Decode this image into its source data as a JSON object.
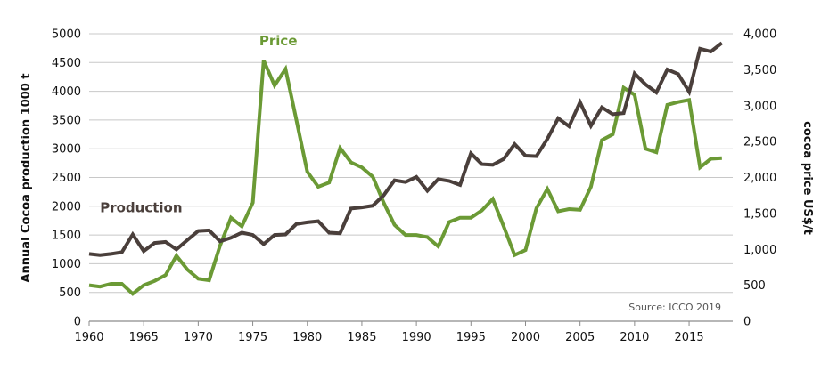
{
  "chart_data": {
    "type": "line",
    "x_ticks": [
      "1960",
      "1965",
      "1970",
      "1975",
      "1980",
      "1985",
      "1990",
      "1995",
      "2000",
      "2005",
      "2010",
      "2015"
    ],
    "xlim": [
      1960,
      2019
    ],
    "ylabel_left": "Annual Cocoa production 1000 t",
    "ylabel_right": "cocoa price US$/t",
    "ylim_left": [
      0,
      5000
    ],
    "ylim_right": [
      0,
      4000
    ],
    "left_ticks": [
      "0",
      "500",
      "1000",
      "1500",
      "2000",
      "2500",
      "3000",
      "3500",
      "4000",
      "4500",
      "5000"
    ],
    "right_ticks": [
      "0",
      "500",
      "1,000",
      "1,500",
      "2,000",
      "2,500",
      "3,000",
      "3,500",
      "4,000"
    ],
    "grid": "horizontal",
    "source": "Source: ICCO 2019",
    "colors": {
      "production": "#4a3f3b",
      "price": "#6b9a35",
      "grid": "#c8c8c8"
    },
    "series": [
      {
        "name": "Production",
        "axis": "left",
        "x": [
          1960,
          1961,
          1962,
          1963,
          1964,
          1965,
          1966,
          1967,
          1968,
          1969,
          1970,
          1971,
          1972,
          1973,
          1974,
          1975,
          1976,
          1977,
          1978,
          1979,
          1980,
          1981,
          1982,
          1983,
          1984,
          1985,
          1986,
          1987,
          1988,
          1989,
          1990,
          1991,
          1992,
          1993,
          1994,
          1995,
          1996,
          1997,
          1998,
          1999,
          2000,
          2001,
          2002,
          2003,
          2004,
          2005,
          2006,
          2007,
          2008,
          2009,
          2010,
          2011,
          2012,
          2013,
          2014,
          2015,
          2016,
          2017,
          2018
        ],
        "values": [
          1170,
          1150,
          1170,
          1200,
          1510,
          1220,
          1360,
          1380,
          1250,
          1410,
          1570,
          1580,
          1390,
          1450,
          1540,
          1500,
          1340,
          1500,
          1510,
          1690,
          1720,
          1740,
          1540,
          1530,
          1960,
          1980,
          2010,
          2190,
          2450,
          2420,
          2510,
          2270,
          2470,
          2440,
          2370,
          2920,
          2730,
          2720,
          2820,
          3080,
          2880,
          2870,
          3170,
          3530,
          3390,
          3810,
          3400,
          3720,
          3600,
          3620,
          4310,
          4120,
          3980,
          4380,
          4300,
          3990,
          4740,
          4690,
          4840
        ]
      },
      {
        "name": "Price",
        "axis": "right",
        "x": [
          1960,
          1961,
          1962,
          1963,
          1964,
          1965,
          1966,
          1967,
          1968,
          1969,
          1970,
          1971,
          1972,
          1973,
          1974,
          1975,
          1976,
          1977,
          1978,
          1979,
          1980,
          1981,
          1982,
          1983,
          1984,
          1985,
          1986,
          1987,
          1988,
          1989,
          1990,
          1991,
          1992,
          1993,
          1994,
          1995,
          1996,
          1997,
          1998,
          1999,
          2000,
          2001,
          2002,
          2003,
          2004,
          2005,
          2006,
          2007,
          2008,
          2009,
          2010,
          2011,
          2012,
          2013,
          2014,
          2015,
          2016,
          2017,
          2018
        ],
        "values": [
          500,
          480,
          520,
          520,
          380,
          500,
          560,
          640,
          910,
          720,
          590,
          570,
          1050,
          1440,
          1320,
          1650,
          3630,
          3280,
          3510,
          2800,
          2080,
          1870,
          1930,
          2410,
          2210,
          2140,
          2010,
          1650,
          1340,
          1200,
          1200,
          1170,
          1040,
          1380,
          1440,
          1440,
          1540,
          1700,
          1320,
          920,
          990,
          1570,
          1840,
          1530,
          1560,
          1550,
          1870,
          2520,
          2600,
          3250,
          3150,
          2400,
          2350,
          3010,
          3050,
          3080,
          2140,
          2260,
          2270
        ]
      }
    ],
    "series_labels": [
      {
        "text": "Production",
        "x": 1961,
        "y": 1900,
        "axis": "left"
      },
      {
        "text": "Price",
        "x": 1975.6,
        "y": 3840,
        "axis": "right"
      }
    ]
  }
}
